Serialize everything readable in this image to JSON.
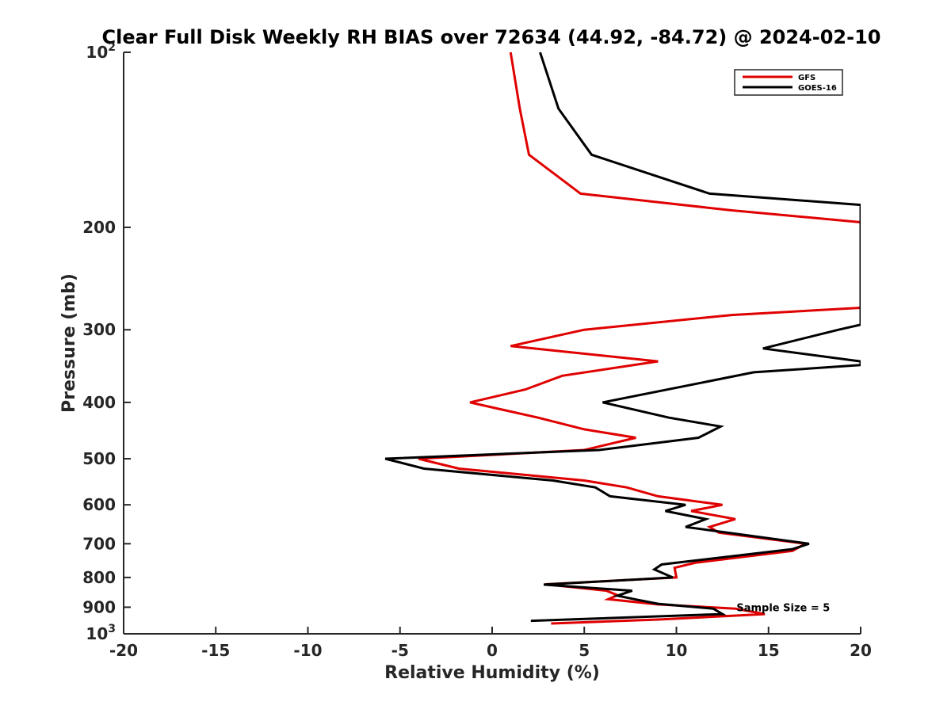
{
  "chart_data": {
    "type": "line",
    "title": "Clear Full Disk Weekly RH BIAS over 72634 (44.92, -84.72) @ 2024-02-10",
    "xlabel": "Relative Humidity (%)",
    "ylabel": "Pressure (mb)",
    "xlim": [
      -20,
      20
    ],
    "ylim": [
      100,
      1000
    ],
    "yscale": "log",
    "y_reversed": true,
    "grid": false,
    "legend_position": "top-right",
    "x_ticks": [
      -20,
      -15,
      -10,
      -5,
      0,
      5,
      10,
      15,
      20
    ],
    "x_tick_labels": [
      "-20",
      "-15",
      "-10",
      "-5",
      "0",
      "5",
      "10",
      "15",
      "20"
    ],
    "y_ticks": [
      100,
      200,
      300,
      400,
      500,
      600,
      700,
      800,
      900,
      1000
    ],
    "y_tick_labels": [
      {
        "base": "10",
        "exp": "2"
      },
      {
        "base": "200",
        "exp": ""
      },
      {
        "base": "300",
        "exp": ""
      },
      {
        "base": "400",
        "exp": ""
      },
      {
        "base": "500",
        "exp": ""
      },
      {
        "base": "600",
        "exp": ""
      },
      {
        "base": "700",
        "exp": ""
      },
      {
        "base": "800",
        "exp": ""
      },
      {
        "base": "900",
        "exp": ""
      },
      {
        "base": "10",
        "exp": "3"
      }
    ],
    "series": [
      {
        "name": "GFS",
        "color": "#e00000",
        "points": [
          [
            1.0,
            100
          ],
          [
            1.5,
            125
          ],
          [
            2.0,
            150
          ],
          [
            4.8,
            175
          ],
          [
            13.0,
            187
          ],
          [
            20.0,
            196
          ],
          [
            20.0,
            275
          ],
          [
            13.0,
            283
          ],
          [
            5.0,
            300
          ],
          [
            1.0,
            320
          ],
          [
            9.0,
            340
          ],
          [
            3.8,
            360
          ],
          [
            1.8,
            380
          ],
          [
            -1.2,
            400
          ],
          [
            2.5,
            425
          ],
          [
            5.0,
            445
          ],
          [
            7.8,
            460
          ],
          [
            5.0,
            483
          ],
          [
            -4.0,
            500
          ],
          [
            -1.8,
            520
          ],
          [
            5.0,
            545
          ],
          [
            7.3,
            560
          ],
          [
            9.0,
            580
          ],
          [
            12.5,
            600
          ],
          [
            10.8,
            615
          ],
          [
            13.2,
            635
          ],
          [
            11.8,
            655
          ],
          [
            12.3,
            670
          ],
          [
            17.0,
            700
          ],
          [
            16.3,
            720
          ],
          [
            11.0,
            755
          ],
          [
            9.9,
            770
          ],
          [
            10.0,
            800
          ],
          [
            2.9,
            822
          ],
          [
            6.2,
            843
          ],
          [
            6.8,
            858
          ],
          [
            6.3,
            872
          ],
          [
            9.0,
            890
          ],
          [
            13.2,
            905
          ],
          [
            14.8,
            925
          ],
          [
            9.0,
            945
          ],
          [
            3.2,
            960
          ]
        ]
      },
      {
        "name": "GOES-16",
        "color": "#000000",
        "points": [
          [
            2.6,
            100
          ],
          [
            3.6,
            125
          ],
          [
            5.4,
            150
          ],
          [
            11.8,
            175
          ],
          [
            20.0,
            183
          ],
          [
            20.0,
            294
          ],
          [
            18.8,
            300
          ],
          [
            14.7,
            323
          ],
          [
            20.0,
            340
          ],
          [
            20.0,
            345
          ],
          [
            14.2,
            355
          ],
          [
            6.0,
            400
          ],
          [
            9.6,
            425
          ],
          [
            12.4,
            440
          ],
          [
            11.2,
            460
          ],
          [
            5.8,
            483
          ],
          [
            -5.8,
            500
          ],
          [
            -3.7,
            520
          ],
          [
            3.3,
            545
          ],
          [
            5.6,
            560
          ],
          [
            6.4,
            580
          ],
          [
            10.5,
            600
          ],
          [
            9.4,
            615
          ],
          [
            11.6,
            635
          ],
          [
            10.5,
            655
          ],
          [
            17.2,
            700
          ],
          [
            16.3,
            715
          ],
          [
            9.2,
            760
          ],
          [
            8.8,
            775
          ],
          [
            9.8,
            800
          ],
          [
            2.8,
            823
          ],
          [
            7.6,
            843
          ],
          [
            6.8,
            860
          ],
          [
            7.8,
            873
          ],
          [
            9.0,
            888
          ],
          [
            12.0,
            905
          ],
          [
            12.5,
            925
          ],
          [
            2.1,
            950
          ]
        ]
      }
    ],
    "legend": [
      "GFS",
      "GOES-16"
    ],
    "annotations": [
      {
        "text": "Sample Size = 5",
        "x": 15.8,
        "y": 900
      }
    ]
  }
}
